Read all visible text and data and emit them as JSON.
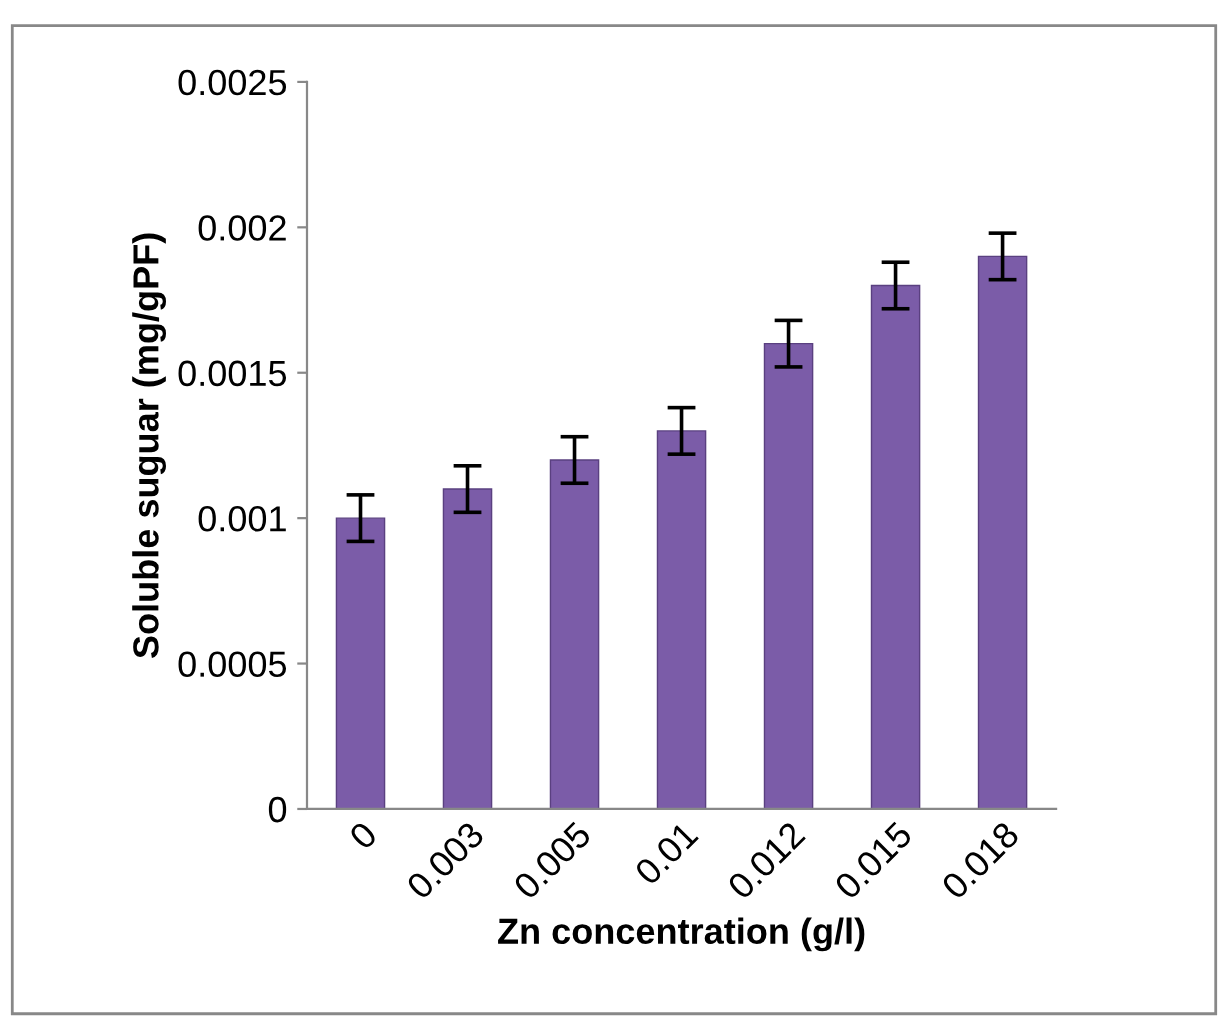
{
  "chart_data": {
    "type": "bar",
    "xlabel": "Zn concentration (g/l)",
    "ylabel": "Soluble suguar (mg/gPF)",
    "categories": [
      "0",
      "0.003",
      "0.005",
      "0.01",
      "0.012",
      "0.015",
      "0.018"
    ],
    "values": [
      0.001,
      0.0011,
      0.0012,
      0.0013,
      0.0016,
      0.0018,
      0.0019
    ],
    "errors": [
      8e-05,
      8e-05,
      8e-05,
      8e-05,
      8e-05,
      8e-05,
      8e-05
    ],
    "color": "#7b5ca8",
    "ylim": [
      0,
      0.0025
    ],
    "yticks": [
      0,
      0.0005,
      0.001,
      0.0015,
      0.002,
      0.0025
    ],
    "grid": false,
    "legend": false
  }
}
